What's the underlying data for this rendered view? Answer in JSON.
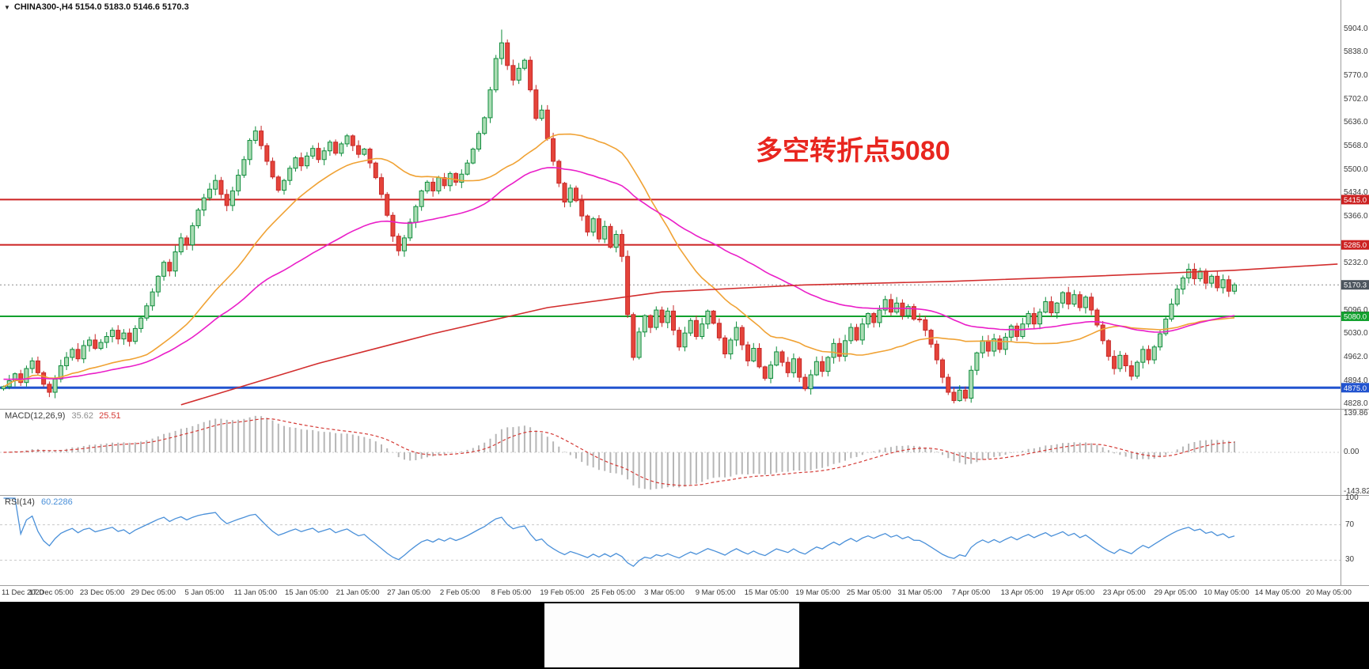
{
  "symbol_bar": {
    "icon": "triangle-down-icon",
    "text": "CHINA300-,H4 5154.0 5183.0 5146.6 5170.3"
  },
  "annotation": {
    "text": "多空转折点5080",
    "color": "#e8261f"
  },
  "chart_data": {
    "type": "candlestick",
    "symbol": "CHINA300-",
    "timeframe": "H4",
    "title": "CHINA300- H4 candlestick chart with MACD and RSI",
    "current_bar": {
      "open": 5154.0,
      "high": 5183.0,
      "low": 5146.6,
      "close": 5170.3
    },
    "y_axis": {
      "range": [
        4828,
        5904
      ],
      "ticks": [
        5904.0,
        5838.0,
        5770.0,
        5702.0,
        5636.0,
        5568.0,
        5500.0,
        5434.0,
        5366.0,
        5232.0,
        5096.0,
        5030.0,
        4962.0,
        4894.0,
        4828.0
      ]
    },
    "x_axis": {
      "labels": [
        "11 Dec 2020",
        "17 Dec 05:00",
        "23 Dec 05:00",
        "29 Dec 05:00",
        "5 Jan 05:00",
        "11 Jan 05:00",
        "15 Jan 05:00",
        "21 Jan 05:00",
        "27 Jan 05:00",
        "2 Feb 05:00",
        "8 Feb 05:00",
        "19 Feb 05:00",
        "25 Feb 05:00",
        "3 Mar 05:00",
        "9 Mar 05:00",
        "15 Mar 05:00",
        "19 Mar 05:00",
        "25 Mar 05:00",
        "31 Mar 05:00",
        "7 Apr 05:00",
        "13 Apr 05:00",
        "19 Apr 05:00",
        "23 Apr 05:00",
        "29 Apr 05:00",
        "10 May 05:00",
        "14 May 05:00",
        "20 May 05:00"
      ]
    },
    "closes": [
      4878,
      4895,
      4915,
      4890,
      4930,
      4952,
      4918,
      4885,
      4862,
      4900,
      4938,
      4962,
      4985,
      4958,
      4996,
      5012,
      4988,
      5005,
      5022,
      5040,
      5015,
      5032,
      5008,
      5045,
      5075,
      5110,
      5150,
      5195,
      5235,
      5210,
      5265,
      5305,
      5285,
      5340,
      5385,
      5420,
      5445,
      5470,
      5430,
      5398,
      5440,
      5485,
      5530,
      5585,
      5612,
      5570,
      5525,
      5480,
      5442,
      5470,
      5505,
      5535,
      5512,
      5540,
      5562,
      5530,
      5555,
      5580,
      5548,
      5575,
      5598,
      5570,
      5545,
      5560,
      5520,
      5478,
      5430,
      5370,
      5310,
      5268,
      5305,
      5350,
      5395,
      5440,
      5465,
      5440,
      5478,
      5455,
      5490,
      5465,
      5488,
      5520,
      5560,
      5605,
      5650,
      5730,
      5820,
      5865,
      5800,
      5758,
      5792,
      5815,
      5730,
      5648,
      5672,
      5590,
      5525,
      5462,
      5408,
      5448,
      5412,
      5368,
      5322,
      5360,
      5302,
      5338,
      5278,
      5315,
      5252,
      5085,
      4962,
      5035,
      5082,
      5048,
      5098,
      5062,
      5095,
      5040,
      4992,
      5032,
      5068,
      5022,
      5058,
      5095,
      5060,
      5018,
      4972,
      5012,
      5048,
      4998,
      4952,
      4988,
      4935,
      4902,
      4940,
      4978,
      4948,
      4918,
      4958,
      4905,
      4872,
      4912,
      4950,
      4922,
      4962,
      5002,
      4965,
      5010,
      5048,
      5012,
      5058,
      5088,
      5062,
      5098,
      5128,
      5092,
      5118,
      5082,
      5108,
      5072,
      5070,
      5040,
      5000,
      4955,
      4905,
      4862,
      4838,
      4868,
      4845,
      4925,
      4975,
      5010,
      4980,
      5015,
      4985,
      5020,
      5052,
      5022,
      5058,
      5088,
      5058,
      5092,
      5122,
      5090,
      5118,
      5148,
      5115,
      5142,
      5105,
      5135,
      5098,
      5055,
      5010,
      4965,
      4930,
      4968,
      4938,
      4908,
      4948,
      4985,
      4955,
      4992,
      5030,
      5072,
      5115,
      5158,
      5190,
      5215,
      5188,
      5210,
      5175,
      5195,
      5162,
      5185,
      5152,
      5170.3
    ],
    "candle_colors": {
      "up_fill": "#abdcb4",
      "up_stroke": "#0f8c3c",
      "down_fill": "#e5443a",
      "down_stroke": "#c62828"
    },
    "moving_averages": [
      {
        "name": "ma-fast",
        "method": "sma",
        "period": 26,
        "color": "#f0a234"
      },
      {
        "name": "ma-mid",
        "method": "ema",
        "period": 60,
        "seed": 4900,
        "color": "#ea1ec8"
      },
      {
        "name": "ma-slow-trend",
        "method": "anchors",
        "color": "#d22d2d",
        "anchors": [
          [
            31,
            4826
          ],
          [
            55,
            4945
          ],
          [
            75,
            5030
          ],
          [
            95,
            5105
          ],
          [
            115,
            5150
          ],
          [
            140,
            5170
          ],
          [
            165,
            5180
          ],
          [
            190,
            5195
          ],
          [
            215,
            5212
          ],
          [
            233,
            5230
          ]
        ]
      }
    ],
    "price_lines": [
      {
        "label": "5415.0",
        "price": 5415.0,
        "color": "#cc2222",
        "tag_bg": "#cc2222",
        "style": "solid",
        "width": 2
      },
      {
        "label": "5285.0",
        "price": 5285.0,
        "color": "#cc2222",
        "tag_bg": "#cc2222",
        "style": "solid",
        "width": 2
      },
      {
        "label": "5170.3",
        "price": 5170.3,
        "color": "#8a8a8a",
        "tag_bg": "#4d565e",
        "style": "dashed",
        "width": 1
      },
      {
        "label": "5080.0",
        "price": 5080.0,
        "color": "#12a12e",
        "tag_bg": "#12a12e",
        "style": "solid",
        "width": 2
      },
      {
        "label": "4875.0",
        "price": 4875.0,
        "color": "#2153cf",
        "tag_bg": "#2153cf",
        "style": "solid",
        "width": 3
      }
    ],
    "indicators": {
      "macd": {
        "label": "MACD(12,26,9)",
        "fast": 12,
        "slow": 26,
        "signal": 9,
        "value_main": "35.62",
        "value_signal": "25.51",
        "ticks": [
          "139.86",
          "0.00",
          "-143.82"
        ],
        "range": [
          -143.82,
          139.86
        ],
        "histogram_color": "#b6b6b6",
        "signal_color": "#d43a35"
      },
      "rsi": {
        "label": "RSI(14)",
        "period": 14,
        "value": "60.2286",
        "ticks": [
          "100",
          "70",
          "30"
        ],
        "levels": [
          70,
          30
        ],
        "range": [
          0,
          100
        ],
        "line_color": "#4a90d9"
      }
    }
  }
}
